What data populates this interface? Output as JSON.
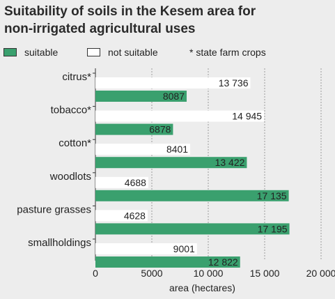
{
  "title_line1": "Suitability of soils in the Kesem area for",
  "title_line2": "non-irrigated agricultural uses",
  "legend": {
    "suitable": "suitable",
    "not_suitable": "not suitable",
    "state_farm": "* state farm crops"
  },
  "colors": {
    "suitable": "#3aa06e",
    "not_suitable": "#ffffff",
    "background": "#ededed",
    "grid": "#9a9a9a"
  },
  "chart_data": {
    "type": "bar",
    "orientation": "horizontal",
    "categories": [
      "citrus*",
      "tobacco*",
      "cotton*",
      "woodlots",
      "pasture grasses",
      "smallholdings"
    ],
    "categories_display": [
      "citrus*",
      "tobacco*",
      "cotton*",
      "woodlots",
      "pasture grasses",
      "smallholdings"
    ],
    "series": [
      {
        "name": "not suitable",
        "values": [
          13736,
          14945,
          8401,
          4688,
          4628,
          9001
        ]
      },
      {
        "name": "suitable",
        "values": [
          8087,
          6878,
          13422,
          17135,
          17195,
          12822
        ]
      }
    ],
    "value_labels": {
      "not suitable": [
        "13 736",
        "14 945",
        "8401",
        "4688",
        "4628",
        "9001"
      ],
      "suitable": [
        "8087",
        "6878",
        "13 422",
        "17 135",
        "17 195",
        "12 822"
      ]
    },
    "xlabel": "area (hectares)",
    "ylabel": "",
    "xlim": [
      0,
      20000
    ],
    "xticks": [
      0,
      5000,
      10000,
      15000,
      20000
    ],
    "xtick_labels": [
      "0",
      "5000",
      "10 000",
      "15 000",
      "20 000"
    ],
    "grid": "vertical dashed"
  }
}
